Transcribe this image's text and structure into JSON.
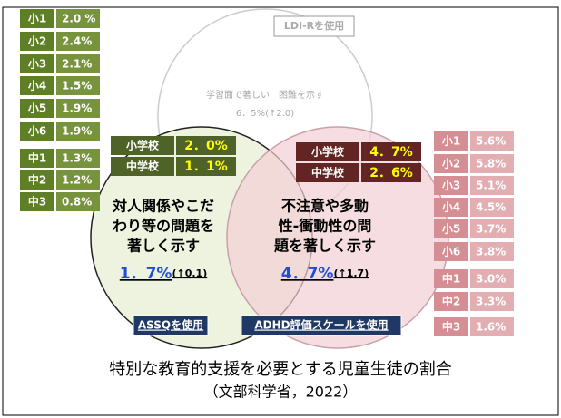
{
  "left_table": {
    "rows": [
      [
        "小1",
        "2.0 %"
      ],
      [
        "小2",
        "2.4%"
      ],
      [
        "小3",
        "2.1%"
      ],
      [
        "小4",
        "1.5%"
      ],
      [
        "小5",
        "1.9%"
      ],
      [
        "小6",
        "1.9%"
      ],
      [
        "中1",
        "1.3%"
      ],
      [
        "中2",
        "1.2%"
      ],
      [
        "中3",
        "0.8%"
      ]
    ]
  },
  "right_table": {
    "rows": [
      [
        "小1",
        "5.6%"
      ],
      [
        "小2",
        "5.8%"
      ],
      [
        "小3",
        "5.1%"
      ],
      [
        "小4",
        "4.5%"
      ],
      [
        "小5",
        "3.7%"
      ],
      [
        "小6",
        "3.8%"
      ],
      [
        "中1",
        "3.0%"
      ],
      [
        "中2",
        "3.3%"
      ],
      [
        "中3",
        "1.6%"
      ]
    ]
  },
  "top_set": {
    "tool": "LDI-Rを使用",
    "description": "学習面で著しい　困難を示す",
    "rate": "6．5%(↑2.0)"
  },
  "left_set": {
    "tool": "ASSQを使用",
    "description": [
      "対人関係やこだ",
      "わり等の問題を",
      "著しく示す"
    ],
    "rate": "1．7%",
    "change": "(↑0.1)",
    "summary": [
      [
        "小学校",
        "2．0%"
      ],
      [
        "中学校",
        "1．1%"
      ]
    ]
  },
  "right_set": {
    "tool": "ADHD評価スケールを使用",
    "description": [
      "不注意や多動",
      "性-衝動性の問",
      "題を著しく示す"
    ],
    "rate": "4．7%",
    "change": "(↑1.7)",
    "summary": [
      [
        "小学校",
        "4．7%"
      ],
      [
        "中学校",
        "2．6%"
      ]
    ]
  },
  "caption": {
    "title": "特別な教育的支援を必要とする児童生徒の割合",
    "source": "（文部科学省，2022）"
  }
}
